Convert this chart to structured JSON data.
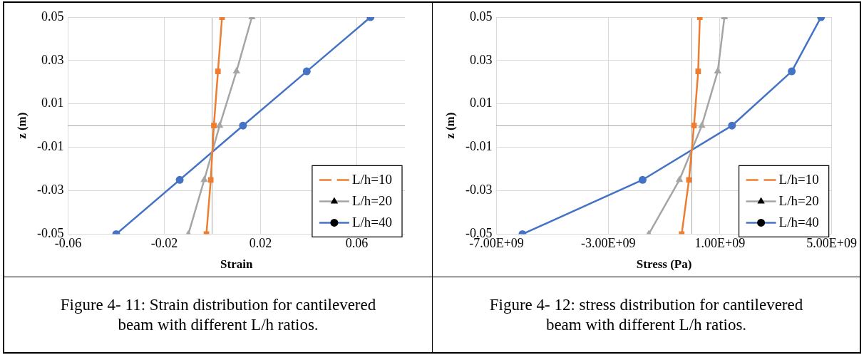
{
  "chart_data": [
    {
      "type": "line",
      "xlabel": "Strain",
      "ylabel": "z (m)",
      "annotations": [
        "Figure 4- 11: Strain distribution for cantilevered beam with different L/h ratios."
      ],
      "xlim": [
        -0.06,
        0.08
      ],
      "xticks": [
        -0.06,
        -0.02,
        {
          "value": 0,
          "label": null
        },
        0.02,
        0.06
      ],
      "ylim": [
        -0.05,
        0.05
      ],
      "yticks": [
        -0.05,
        -0.03,
        -0.01,
        {
          "value": 0,
          "label": null
        },
        0.01,
        0.03,
        0.05
      ],
      "grid": true,
      "legend": "bottom right",
      "series": [
        {
          "name": "L/h=10",
          "color": "#ed7d31",
          "marker": "square",
          "x": [
            0.004,
            0.0023,
            0.0006,
            -0.0007,
            -0.0025
          ],
          "values": [
            0.05,
            0.025,
            0,
            -0.025,
            -0.05
          ]
        },
        {
          "name": "L/h=20",
          "color": "#a5a5a5",
          "marker": "triangle",
          "x": [
            0.0164,
            0.01,
            0.003,
            -0.0034,
            -0.01
          ],
          "values": [
            0.05,
            0.025,
            0,
            -0.025,
            -0.05
          ]
        },
        {
          "name": "L/h=40",
          "color": "#4472c4",
          "marker": "circle",
          "x": [
            0.0657,
            0.0392,
            0.0127,
            -0.0136,
            -0.04
          ],
          "values": [
            0.05,
            0.025,
            0,
            -0.025,
            -0.05
          ]
        }
      ]
    },
    {
      "type": "line",
      "xlabel": "Stress (Pa)",
      "ylabel": "z (m)",
      "annotations": [
        "Figure 4- 12: stress distribution for cantilevered beam with different L/h ratios."
      ],
      "xlim": [
        -7000000000,
        5000000000
      ],
      "xticks": [
        {
          "value": -7000000000,
          "label": "-7.00E+09"
        },
        {
          "value": -3000000000,
          "label": "-3.00E+09"
        },
        {
          "value": 0,
          "label": null
        },
        {
          "value": 1000000000,
          "label": "1.00E+09"
        },
        {
          "value": 5000000000,
          "label": "5.00E+09"
        }
      ],
      "ylim": [
        -0.05,
        0.05
      ],
      "yticks": [
        -0.05,
        -0.03,
        -0.01,
        {
          "value": 0,
          "label": null
        },
        0.01,
        0.03,
        0.05
      ],
      "grid": true,
      "legend": "bottom right",
      "series": [
        {
          "name": "L/h=10",
          "color": "#ed7d31",
          "marker": "square",
          "x": [
            280000000,
            220000000,
            70000000,
            -110000000,
            -370000000
          ],
          "values": [
            0.05,
            0.025,
            0,
            -0.025,
            -0.05
          ]
        },
        {
          "name": "L/h=20",
          "color": "#a5a5a5",
          "marker": "triangle",
          "x": [
            1160000000,
            920000000,
            350000000,
            -450000000,
            -1550000000
          ],
          "values": [
            0.05,
            0.025,
            0,
            -0.025,
            -0.05
          ]
        },
        {
          "name": "L/h=40",
          "color": "#4472c4",
          "marker": "circle",
          "x": [
            4620000000,
            3570000000,
            1430000000,
            -1770000000,
            -6070000000
          ],
          "values": [
            0.05,
            0.025,
            0,
            -0.025,
            -0.05
          ]
        }
      ]
    }
  ]
}
